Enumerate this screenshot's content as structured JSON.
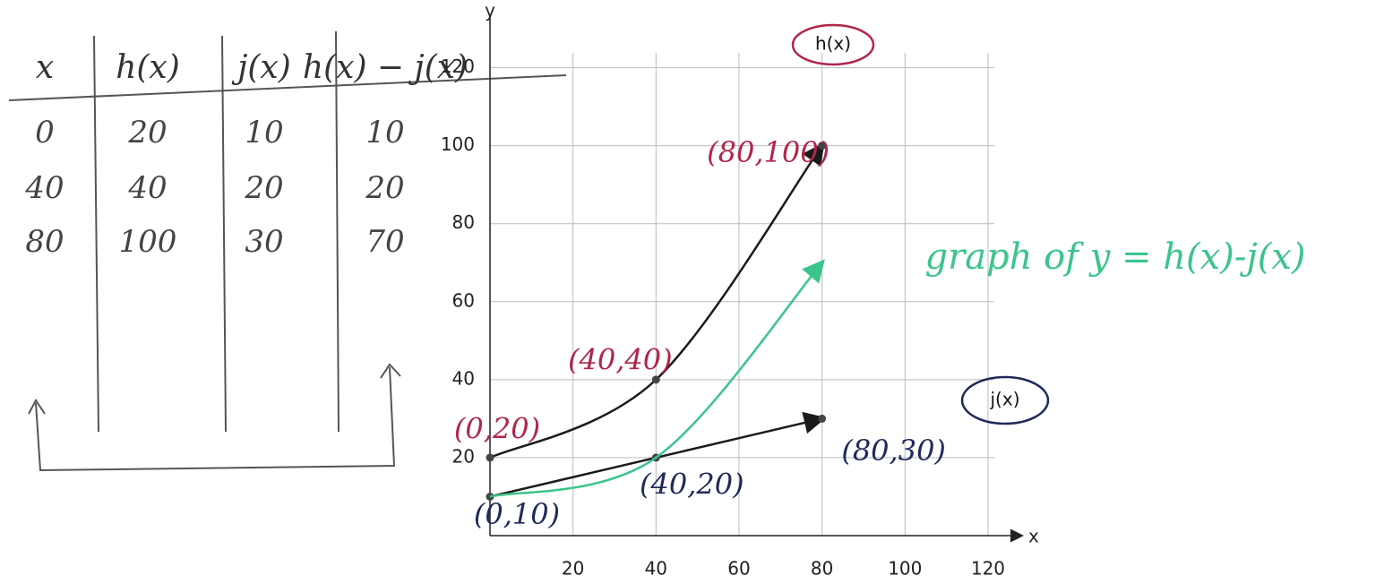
{
  "table": {
    "headers": [
      "x",
      "h(x)",
      "j(x)",
      "h(x) − j(x)"
    ],
    "rows": [
      [
        "0",
        "20",
        "10",
        "10"
      ],
      [
        "40",
        "40",
        "20",
        "20"
      ],
      [
        "80",
        "100",
        "30",
        "70"
      ]
    ]
  },
  "chart_data": {
    "type": "line",
    "x_label": "x",
    "y_label": "y",
    "xlim": [
      0,
      128
    ],
    "ylim": [
      0,
      133
    ],
    "xticks": [
      20,
      40,
      60,
      80,
      100,
      120
    ],
    "yticks": [
      20,
      40,
      60,
      80,
      100,
      120
    ],
    "grid": true,
    "series": [
      {
        "name": "h(x)",
        "color": "#1a1a1a",
        "label_color": "#b0264a",
        "markers": true,
        "x": [
          0,
          40,
          80
        ],
        "values": [
          20,
          40,
          100
        ],
        "value_labels": [
          "(0,20)",
          "(40,40)",
          "(80,100)"
        ]
      },
      {
        "name": "j(x)",
        "color": "#1a1a1a",
        "label_color": "#1f2a5a",
        "markers": true,
        "x": [
          0,
          40,
          80
        ],
        "values": [
          10,
          20,
          30
        ],
        "value_labels": [
          "(0,10)",
          "(40,20)",
          "(80,30)"
        ]
      },
      {
        "name": "graph of y = h(x)-j(x)",
        "color": "#3cc48c",
        "label_color": "#3cc48c",
        "markers": false,
        "x": [
          0,
          40,
          80
        ],
        "values": [
          10,
          20,
          70
        ]
      }
    ]
  }
}
